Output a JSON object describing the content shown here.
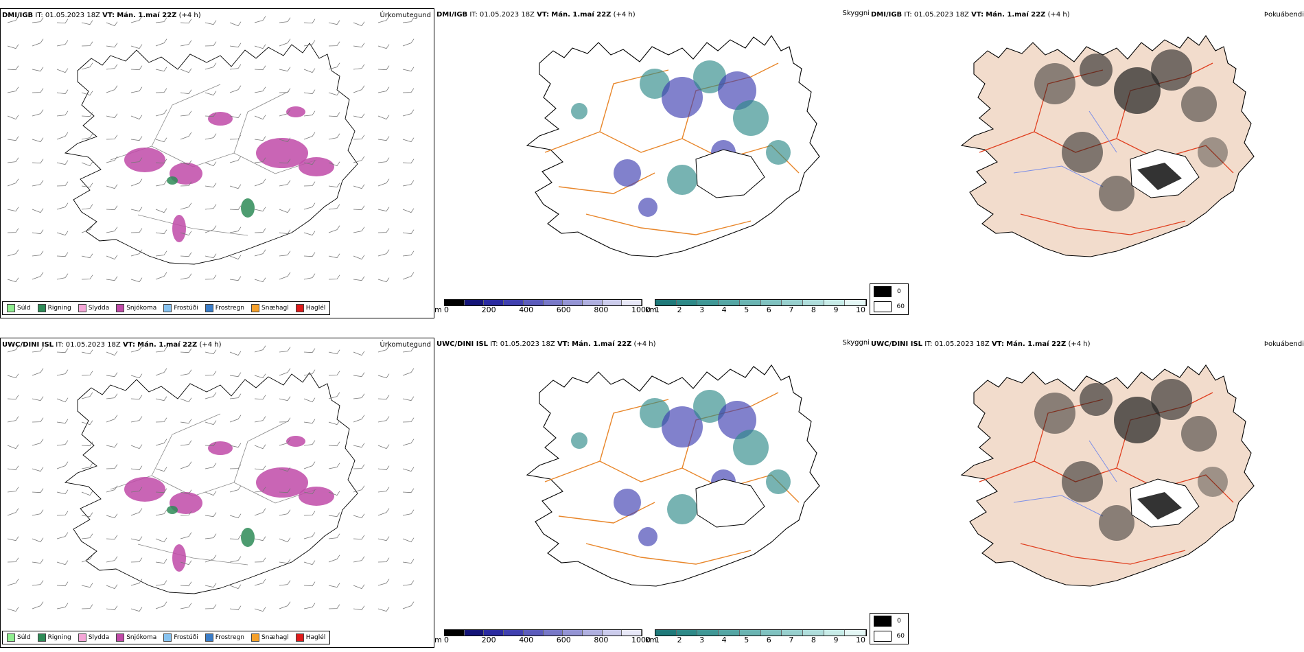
{
  "rows": [
    {
      "model": "DMI/IGB",
      "it_label": "IT:",
      "it_value": "01.05.2023 18Z",
      "vt_label": "VT:",
      "vt_value": "Mán. 1.maí 22Z",
      "offset": "(+4 h)",
      "panel_titles": [
        "Úrkomutegund",
        "Skyggni",
        "Þokuábendi"
      ]
    },
    {
      "model": "UWC/DINI ISL",
      "it_label": "IT:",
      "it_value": "01.05.2023 18Z",
      "vt_label": "VT:",
      "vt_value": "Mán. 1.maí 22Z",
      "offset": "(+4 h)",
      "panel_titles": [
        "Úrkomutegund",
        "Skyggni",
        "Þokuábendi"
      ]
    }
  ],
  "precip_legend": [
    {
      "label": "Súld",
      "color": "#90ee90"
    },
    {
      "label": "Rigning",
      "color": "#2e8b57"
    },
    {
      "label": "Slydda",
      "color": "#f4a6d7"
    },
    {
      "label": "Snjókoma",
      "color": "#c04aa8"
    },
    {
      "label": "Frostúði",
      "color": "#87c3f0"
    },
    {
      "label": "Frostregn",
      "color": "#3a7cc7"
    },
    {
      "label": "Snæhagl",
      "color": "#f5a02a"
    },
    {
      "label": "Haglél",
      "color": "#e01b1b"
    }
  ],
  "cloud_base_scale": {
    "unit": "m",
    "ticks": [
      "0",
      "200",
      "400",
      "600",
      "800",
      "1000"
    ],
    "colors": [
      "#000000",
      "#141478",
      "#2a2aa0",
      "#4040b0",
      "#5c5cbc",
      "#7878c8",
      "#9494d4",
      "#b0b0e0",
      "#ccccec",
      "#e8e8f8"
    ]
  },
  "visibility_scale": {
    "unit": "km",
    "ticks": [
      "1",
      "2",
      "3",
      "4",
      "5",
      "6",
      "7",
      "8",
      "9",
      "10"
    ],
    "colors": [
      "#1f7a7a",
      "#2e8a88",
      "#409896",
      "#55a6a4",
      "#6ab4b2",
      "#80c2c0",
      "#98d0ce",
      "#b0dedc",
      "#c8ece8",
      "#e4f7f5"
    ]
  },
  "fog_legend": [
    {
      "label": "0",
      "color": "#000000"
    },
    {
      "label": "60",
      "color": "#ffffff"
    }
  ],
  "colors": {
    "snow": "#c04aa8",
    "rain": "#2e8b57",
    "road_orange": "#e8862a",
    "road_red": "#e04020",
    "land_peach": "#f2dccc",
    "glacier_outline": "#000000",
    "river_blue": "#7a8ee8"
  }
}
